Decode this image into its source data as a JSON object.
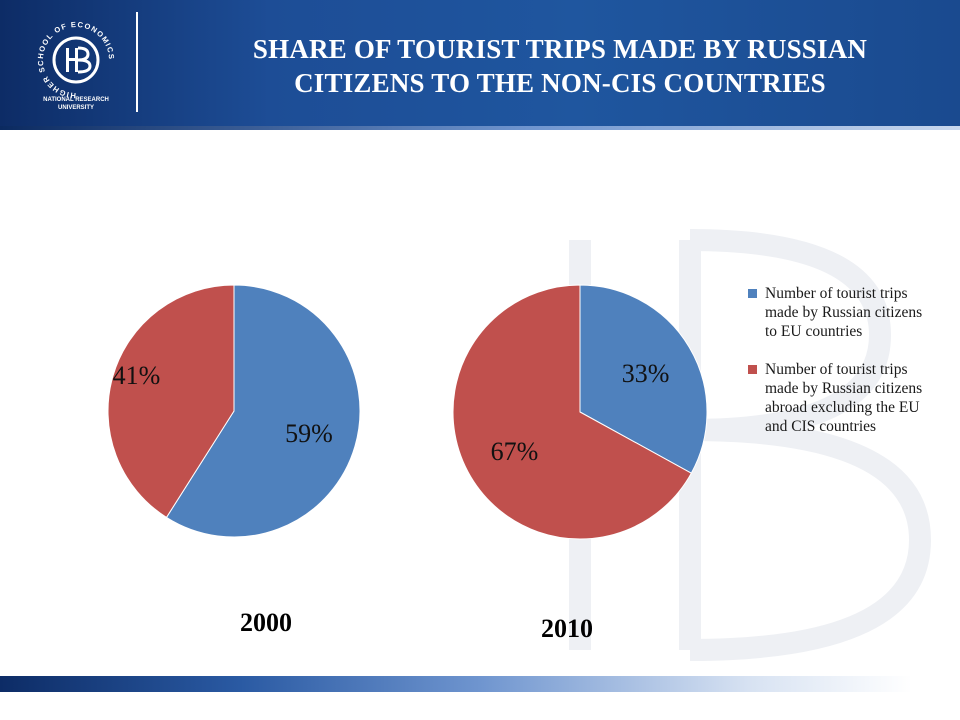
{
  "header": {
    "title_line1": "SHARE OF TOURIST TRIPS MADE BY RUSSIAN",
    "title_line2": "CITIZENS TO THE NON-CIS COUNTRIES",
    "logo_ring_text": "HIGHER SCHOOL OF ECONOMICS",
    "logo_caption_line1": "NATIONAL RESEARCH",
    "logo_caption_line2": "UNIVERSITY"
  },
  "colors": {
    "header_blue": "#1d4d96",
    "series_eu": "#4f81bd",
    "series_other": "#c0504d"
  },
  "chart_data": [
    {
      "type": "pie",
      "title": "2000",
      "categories": [
        "Number of tourist trips made by Russian citizens to EU countries",
        "Number of tourist trips made by Russian citizens abroad excluding the EU and CIS countries"
      ],
      "values": [
        59,
        41
      ],
      "labels": [
        "59%",
        "41%"
      ]
    },
    {
      "type": "pie",
      "title": "2010",
      "categories": [
        "Number of tourist trips made by Russian citizens to EU countries",
        "Number of tourist trips made by Russian citizens abroad excluding the EU and CIS countries"
      ],
      "values": [
        33,
        67
      ],
      "labels": [
        "33%",
        "67%"
      ]
    }
  ],
  "legend": {
    "placement": "right",
    "items": [
      {
        "label": "Number of tourist trips made by Russian citizens to EU countries",
        "color": "#4f81bd"
      },
      {
        "label": "Number of tourist trips made by Russian citizens abroad excluding the EU and CIS countries",
        "color": "#c0504d"
      }
    ]
  }
}
